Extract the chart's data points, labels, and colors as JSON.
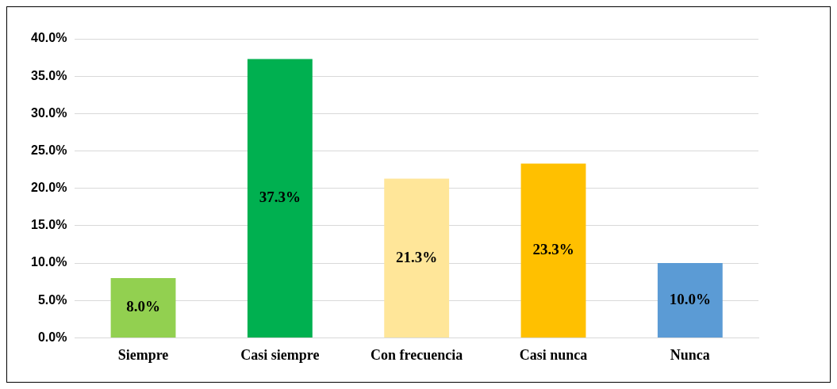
{
  "chart_data": {
    "type": "bar",
    "categories": [
      "Siempre",
      "Casi siempre",
      "Con frecuencia",
      "Casi nunca",
      "Nunca"
    ],
    "values": [
      8.0,
      37.3,
      21.3,
      23.3,
      10.0
    ],
    "colors": [
      "#92d050",
      "#00b050",
      "#ffe699",
      "#ffc000",
      "#5b9bd5"
    ],
    "value_labels": [
      "8.0%",
      "37.3%",
      "21.3%",
      "23.3%",
      "10.0%"
    ],
    "ylim": [
      0,
      40
    ],
    "yticks": [
      {
        "value": 0,
        "label": "0.0%"
      },
      {
        "value": 5,
        "label": "5.0%"
      },
      {
        "value": 10,
        "label": "10.0%"
      },
      {
        "value": 15,
        "label": "15.0%"
      },
      {
        "value": 20,
        "label": "20.0%"
      },
      {
        "value": 25,
        "label": "25.0%"
      },
      {
        "value": 30,
        "label": "30.0%"
      },
      {
        "value": 35,
        "label": "35.0%"
      },
      {
        "value": 40,
        "label": "40.0%"
      }
    ],
    "grid": "y"
  }
}
